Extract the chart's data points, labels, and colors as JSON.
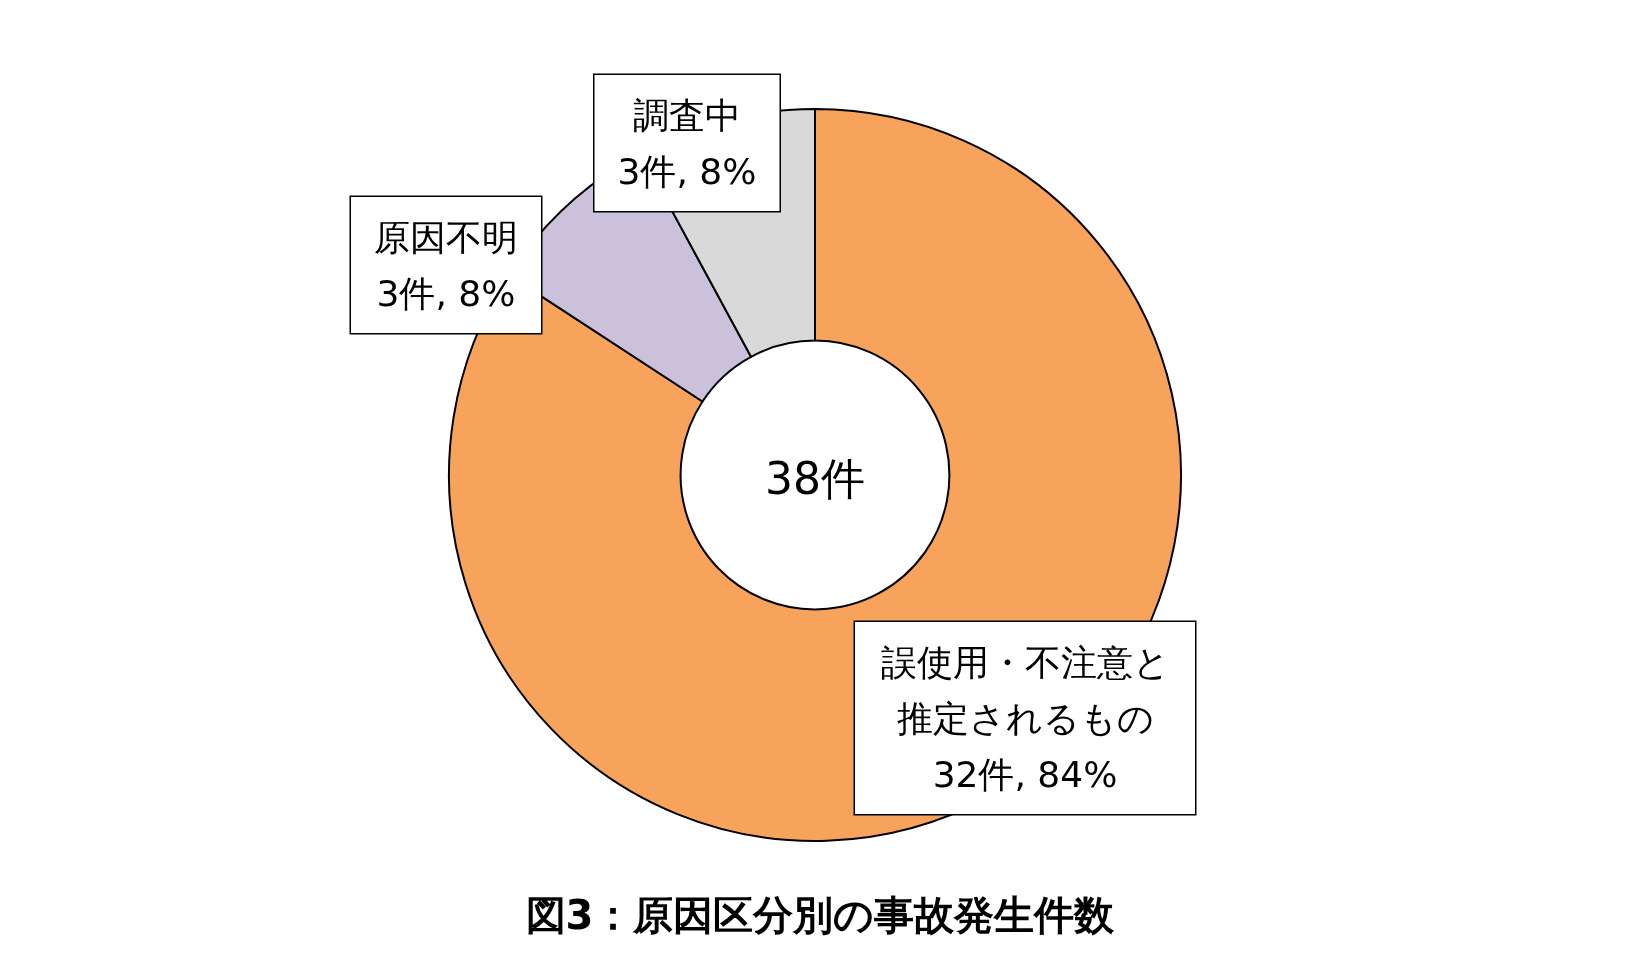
{
  "chart_data": {
    "type": "donut",
    "title": "図3：原因区分別の事故発生件数",
    "categories": [
      "誤使用・不注意と推定されるもの",
      "原因不明",
      "調査中"
    ],
    "values": [
      32,
      3,
      3
    ],
    "value_labels": [
      "32件, 84%",
      "3件, 8%",
      "3件, 8%"
    ],
    "colors": [
      "#f7a35c",
      "#ccc1da",
      "#d9d9d9"
    ],
    "annotations": [
      "38件"
    ],
    "legend": false
  }
}
